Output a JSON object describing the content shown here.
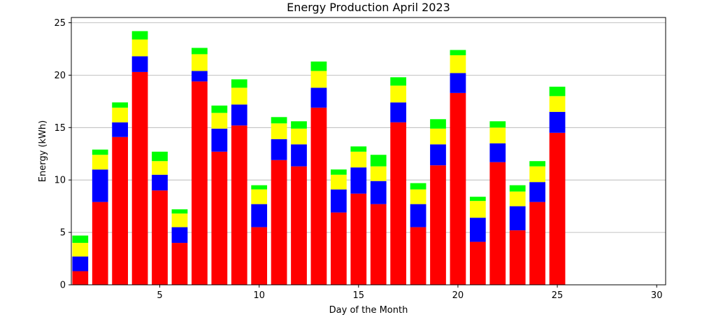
{
  "chart_data": {
    "type": "bar",
    "stacked": true,
    "title": "Energy Production April 2023",
    "xlabel": "Day of the Month",
    "ylabel": "Energy (kWh)",
    "xlim": [
      0.55,
      30.45
    ],
    "ylim": [
      0,
      25.5
    ],
    "xticks": [
      5,
      10,
      15,
      20,
      25,
      30
    ],
    "yticks": [
      0,
      5,
      10,
      15,
      20,
      25
    ],
    "grid": {
      "y": true,
      "x": false
    },
    "x": [
      1,
      2,
      3,
      4,
      5,
      6,
      7,
      8,
      9,
      10,
      11,
      12,
      13,
      14,
      15,
      16,
      17,
      18,
      19,
      20,
      21,
      22,
      23,
      24,
      25
    ],
    "series": [
      {
        "color": "#ff0000",
        "values": [
          1.3,
          7.9,
          14.1,
          20.3,
          9.0,
          4.0,
          19.4,
          12.7,
          15.2,
          5.5,
          11.9,
          11.3,
          16.9,
          6.9,
          8.7,
          7.7,
          15.5,
          5.5,
          11.4,
          18.3,
          4.1,
          11.7,
          5.2,
          7.9,
          14.5
        ]
      },
      {
        "color": "#0000ff",
        "values": [
          1.4,
          3.1,
          1.4,
          1.5,
          1.5,
          1.5,
          1.0,
          2.2,
          2.0,
          2.2,
          2.0,
          2.1,
          1.9,
          2.2,
          2.5,
          2.2,
          1.9,
          2.2,
          2.0,
          1.9,
          2.3,
          1.8,
          2.3,
          1.9,
          2.0
        ]
      },
      {
        "color": "#ffff00",
        "values": [
          1.3,
          1.4,
          1.4,
          1.6,
          1.3,
          1.3,
          1.6,
          1.5,
          1.6,
          1.4,
          1.5,
          1.5,
          1.6,
          1.4,
          1.5,
          1.4,
          1.6,
          1.4,
          1.5,
          1.7,
          1.6,
          1.5,
          1.4,
          1.5,
          1.5
        ]
      },
      {
        "color": "#00ff00",
        "values": [
          0.7,
          0.5,
          0.5,
          0.8,
          0.9,
          0.4,
          0.6,
          0.7,
          0.8,
          0.4,
          0.6,
          0.7,
          0.9,
          0.5,
          0.5,
          1.1,
          0.8,
          0.6,
          0.9,
          0.5,
          0.4,
          0.6,
          0.6,
          0.5,
          0.9
        ]
      }
    ]
  }
}
